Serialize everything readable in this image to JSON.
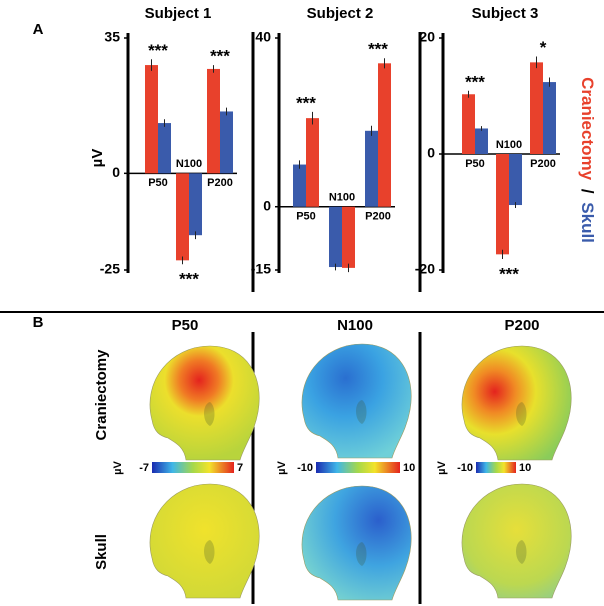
{
  "panel_a": {
    "label": "A"
  },
  "chart_data": [
    {
      "type": "bar",
      "title": "Subject 1",
      "y_label": "µV",
      "categories": [
        "P50",
        "N100",
        "P200"
      ],
      "ylim": [
        -25,
        35
      ],
      "yticks": [
        -25,
        0,
        35
      ],
      "series": [
        {
          "name": "Craniectomy",
          "color": "#e8412c",
          "values": [
            28,
            -22.5,
            27
          ],
          "errors": [
            1.5,
            1,
            1
          ]
        },
        {
          "name": "Skull",
          "color": "#3a5bab",
          "values": [
            13,
            -16,
            16
          ],
          "errors": [
            1,
            1,
            1
          ]
        }
      ],
      "annotations": [
        "***",
        "***",
        "***"
      ]
    },
    {
      "type": "bar",
      "title": "Subject 2",
      "categories": [
        "P50",
        "N100",
        "P200"
      ],
      "ylim": [
        -15,
        40
      ],
      "yticks": [
        -15,
        0,
        40
      ],
      "series": [
        {
          "name": "Skull",
          "color": "#3a5bab",
          "values": [
            10,
            -14.3,
            18
          ],
          "errors": [
            1,
            0.8,
            1.2
          ]
        },
        {
          "name": "Craniectomy",
          "color": "#e8412c",
          "values": [
            21,
            -14.5,
            34
          ],
          "errors": [
            1.5,
            1,
            1.2
          ]
        }
      ],
      "annotations": [
        "***",
        null,
        "***"
      ]
    },
    {
      "type": "bar",
      "title": "Subject 3",
      "categories": [
        "P50",
        "N100",
        "P200"
      ],
      "ylim": [
        -20,
        20
      ],
      "yticks": [
        -20,
        0,
        20
      ],
      "series": [
        {
          "name": "Craniectomy",
          "color": "#e8412c",
          "values": [
            10.3,
            -17.3,
            15.8
          ],
          "errors": [
            0.6,
            0.8,
            1
          ]
        },
        {
          "name": "Skull",
          "color": "#3a5bab",
          "values": [
            4.4,
            -8.8,
            12.4
          ],
          "errors": [
            0.4,
            0.5,
            0.8
          ]
        }
      ],
      "annotations": [
        "***",
        "***",
        "*"
      ]
    }
  ],
  "legend": {
    "separator": "/"
  },
  "panel_b": {
    "label": "B",
    "columns": [
      "P50",
      "N100",
      "P200"
    ],
    "rows": [
      "Craniectomy",
      "Skull"
    ],
    "colorbars": [
      {
        "unit": "µV",
        "ticks": [
          -7,
          7
        ]
      },
      {
        "unit": "µV",
        "ticks": [
          -10,
          10
        ]
      },
      {
        "unit": "µV",
        "ticks": [
          -10,
          10
        ]
      }
    ]
  }
}
